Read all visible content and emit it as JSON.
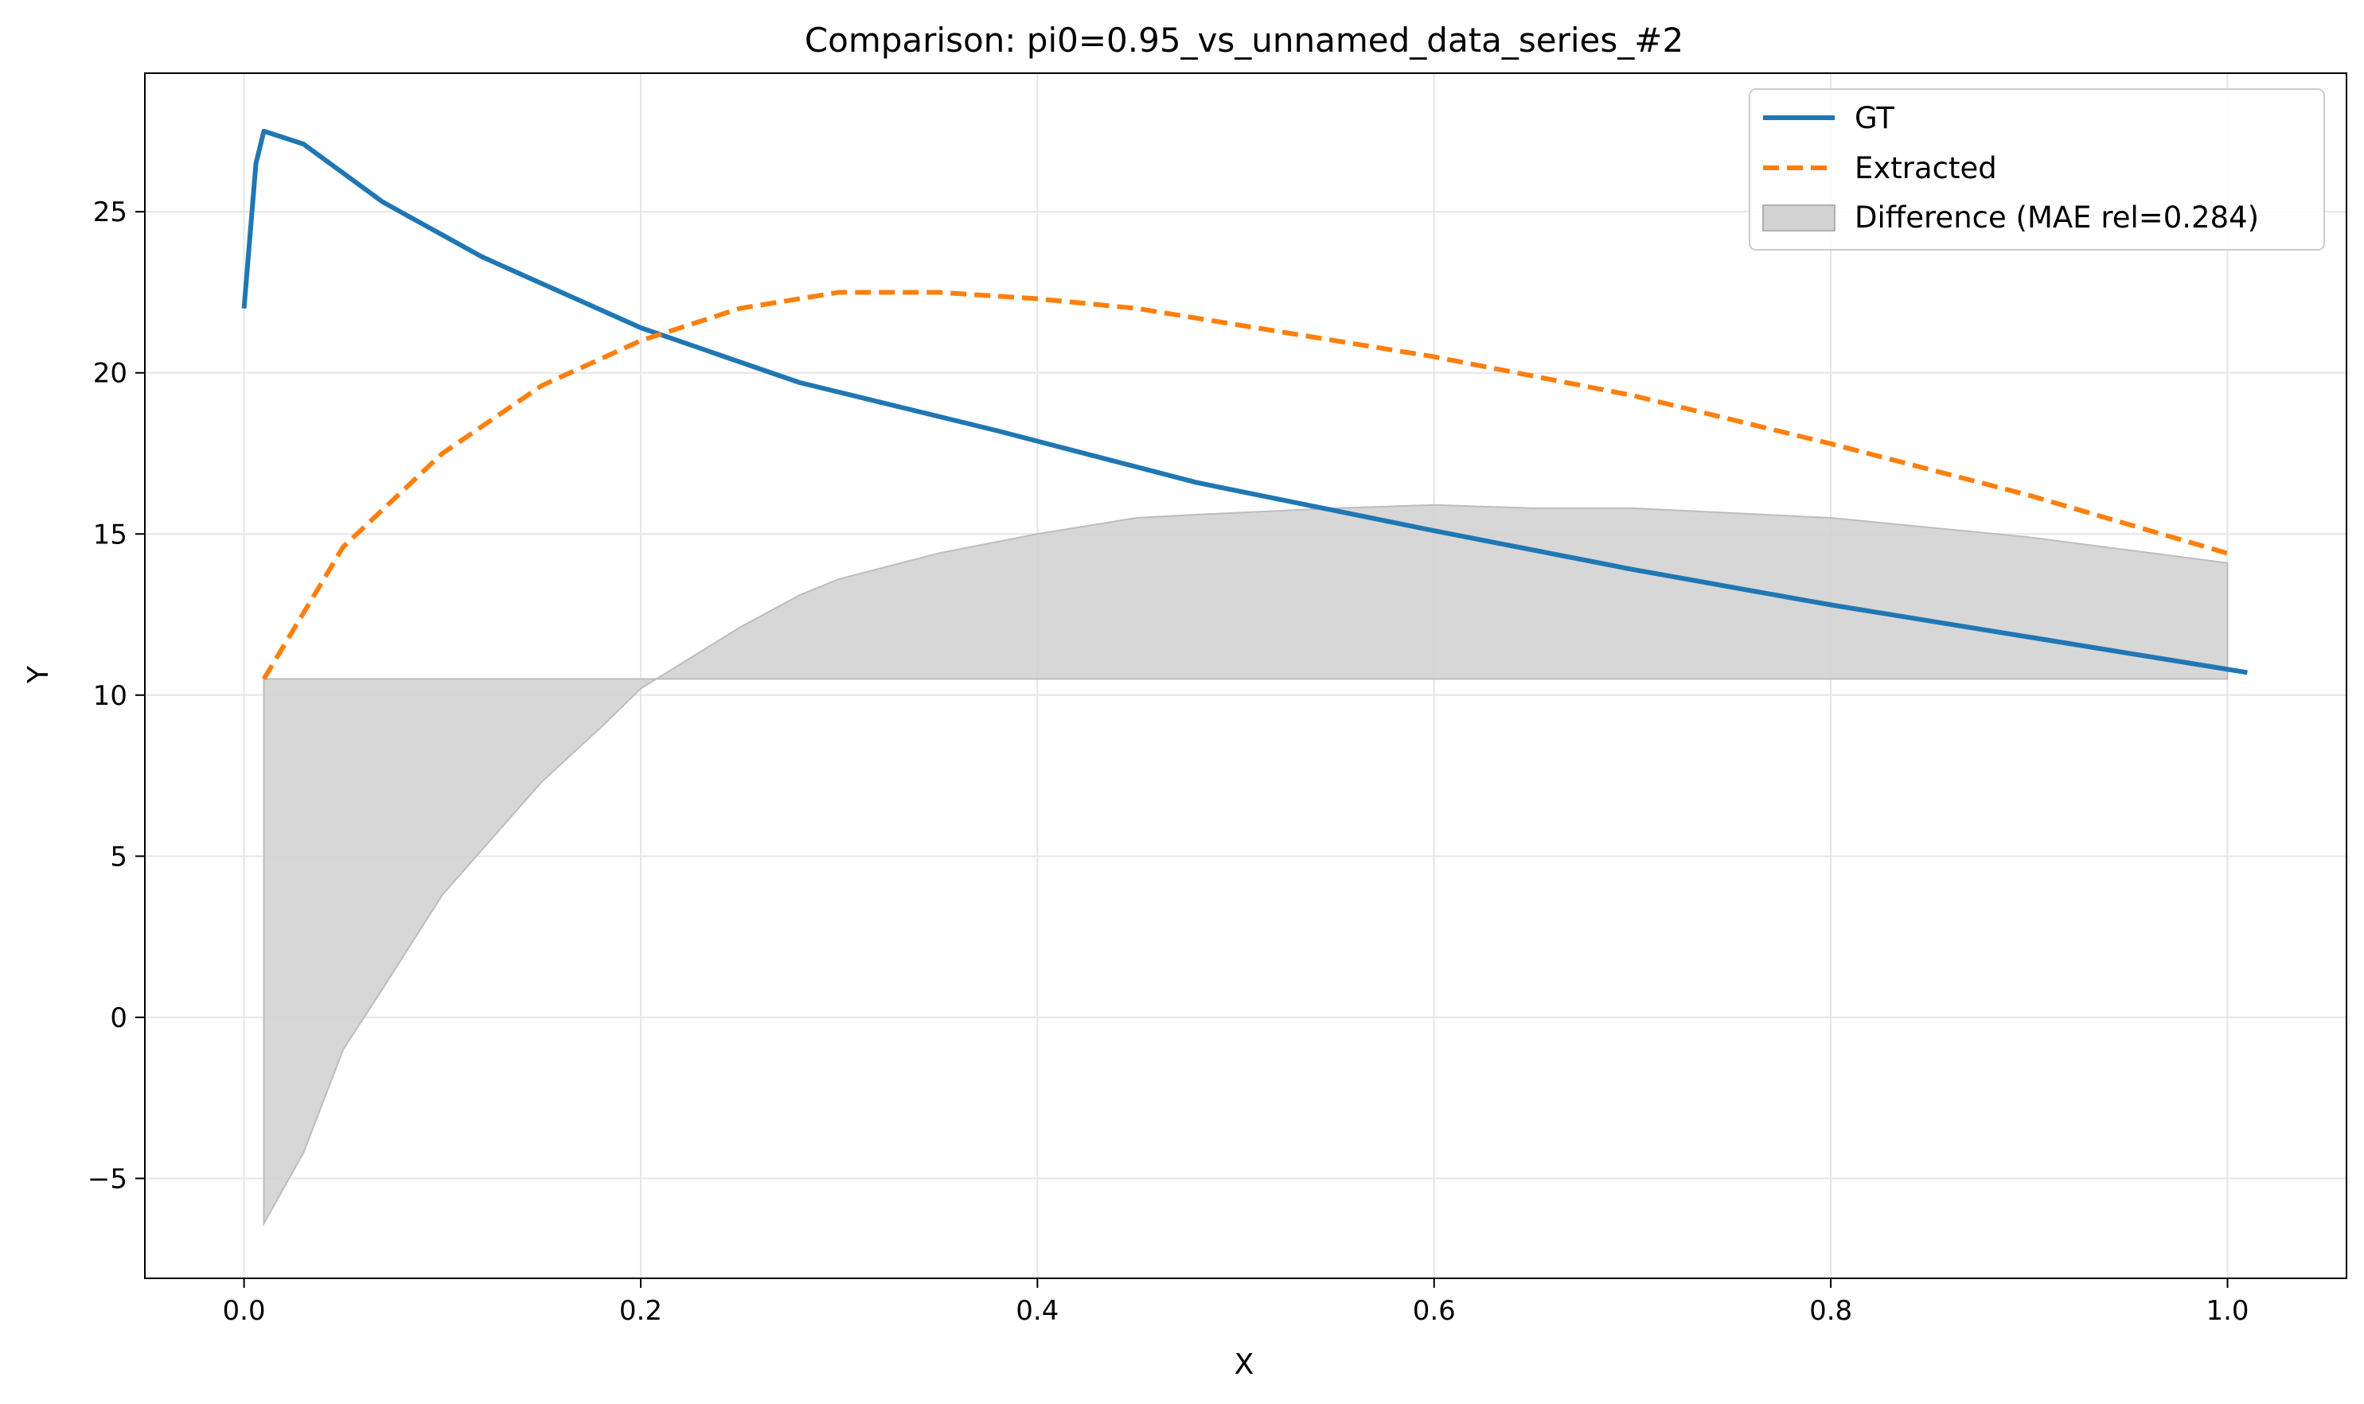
{
  "chart_data": {
    "type": "line",
    "title": "Comparison: pi0=0.95_vs_unnamed_data_series_#2",
    "xlabel": "X",
    "ylabel": "Y",
    "xlim": [
      -0.05,
      1.06
    ],
    "ylim": [
      -8.1,
      29.3
    ],
    "xticks": [
      0.0,
      0.2,
      0.4,
      0.6,
      0.8,
      1.0
    ],
    "xtick_labels": [
      "0.0",
      "0.2",
      "0.4",
      "0.6",
      "0.8",
      "1.0"
    ],
    "yticks": [
      -5,
      0,
      5,
      10,
      15,
      20,
      25
    ],
    "ytick_labels": [
      "−5",
      "0",
      "5",
      "10",
      "15",
      "20",
      "25"
    ],
    "grid": true,
    "legend_position": "top-right",
    "series": [
      {
        "name": "GT",
        "color": "#1f77b4",
        "style": "solid",
        "x": [
          0.0,
          0.006,
          0.01,
          0.03,
          0.07,
          0.12,
          0.2,
          0.28,
          0.38,
          0.48,
          0.6,
          0.7,
          0.8,
          0.9,
          1.01
        ],
        "y": [
          22.0,
          26.5,
          27.5,
          27.1,
          25.3,
          23.6,
          21.4,
          19.7,
          18.2,
          16.6,
          15.1,
          13.9,
          12.8,
          11.8,
          10.7
        ]
      },
      {
        "name": "Extracted",
        "color": "#ff7f0e",
        "style": "dashed",
        "x": [
          0.01,
          0.05,
          0.1,
          0.15,
          0.2,
          0.25,
          0.3,
          0.35,
          0.4,
          0.45,
          0.5,
          0.6,
          0.7,
          0.8,
          0.9,
          1.0
        ],
        "y": [
          10.5,
          14.6,
          17.5,
          19.6,
          21.0,
          22.0,
          22.5,
          22.5,
          22.3,
          22.0,
          21.5,
          20.5,
          19.3,
          17.8,
          16.2,
          14.4
        ]
      }
    ],
    "difference": {
      "name": "Difference (MAE rel=0.284)",
      "color": "#d3d3d3",
      "baseline": 10.5,
      "x": [
        0.01,
        0.03,
        0.05,
        0.07,
        0.1,
        0.12,
        0.15,
        0.18,
        0.2,
        0.25,
        0.28,
        0.3,
        0.35,
        0.4,
        0.45,
        0.48,
        0.55,
        0.6,
        0.65,
        0.7,
        0.8,
        0.9,
        1.0
      ],
      "y": [
        -6.4,
        -4.2,
        -1.0,
        0.9,
        3.8,
        5.2,
        7.3,
        9.0,
        10.2,
        12.1,
        13.1,
        13.6,
        14.4,
        15.0,
        15.5,
        15.6,
        15.8,
        15.9,
        15.8,
        15.8,
        15.5,
        14.9,
        14.1
      ]
    }
  }
}
